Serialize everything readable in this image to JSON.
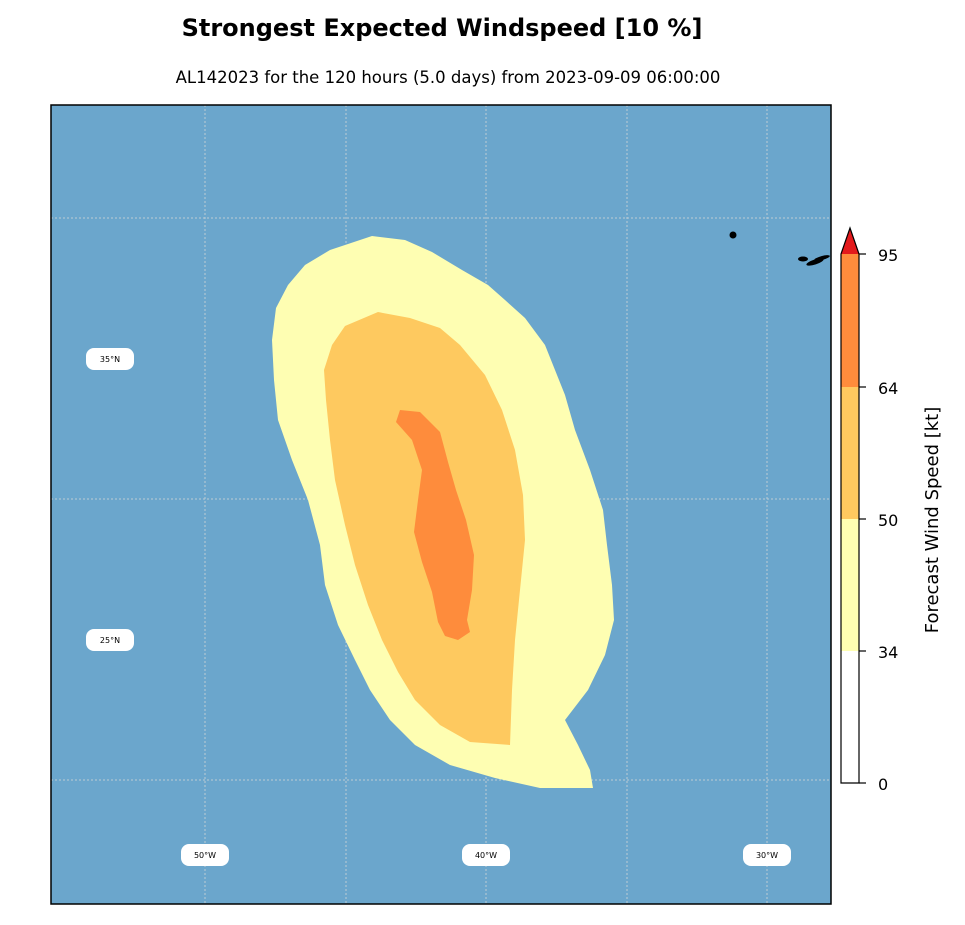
{
  "title": "Strongest Expected Windspeed [10 %]",
  "subtitle": "AL142023 for the 120 hours (5.0 days) from 2023-09-09 06:00:00",
  "map": {
    "ocean_color": "#6ba6cc",
    "land_color": "#000000",
    "gridline_color": "#d9d9d9",
    "lon_labels": [
      "50°W",
      "40°W",
      "30°W"
    ],
    "lat_labels": [
      "35°N",
      "25°N"
    ]
  },
  "wind_bands": [
    {
      "range": "34-50 kt",
      "color": "#fefeb2"
    },
    {
      "range": "50-64 kt",
      "color": "#fec95f"
    },
    {
      "range": "64-95 kt",
      "color": "#fe8c3c"
    }
  ],
  "colorbar": {
    "label": "Forecast Wind Speed [kt]",
    "ticks": [
      "0",
      "34",
      "50",
      "64",
      "95"
    ],
    "bands": [
      {
        "from": 0,
        "to": 34,
        "color": "#ffffff"
      },
      {
        "from": 34,
        "to": 50,
        "color": "#fefeb2"
      },
      {
        "from": 50,
        "to": 64,
        "color": "#fec95f"
      },
      {
        "from": 64,
        "to": 95,
        "color": "#fe8c3c"
      }
    ],
    "extend_color": "#e31a1c"
  }
}
